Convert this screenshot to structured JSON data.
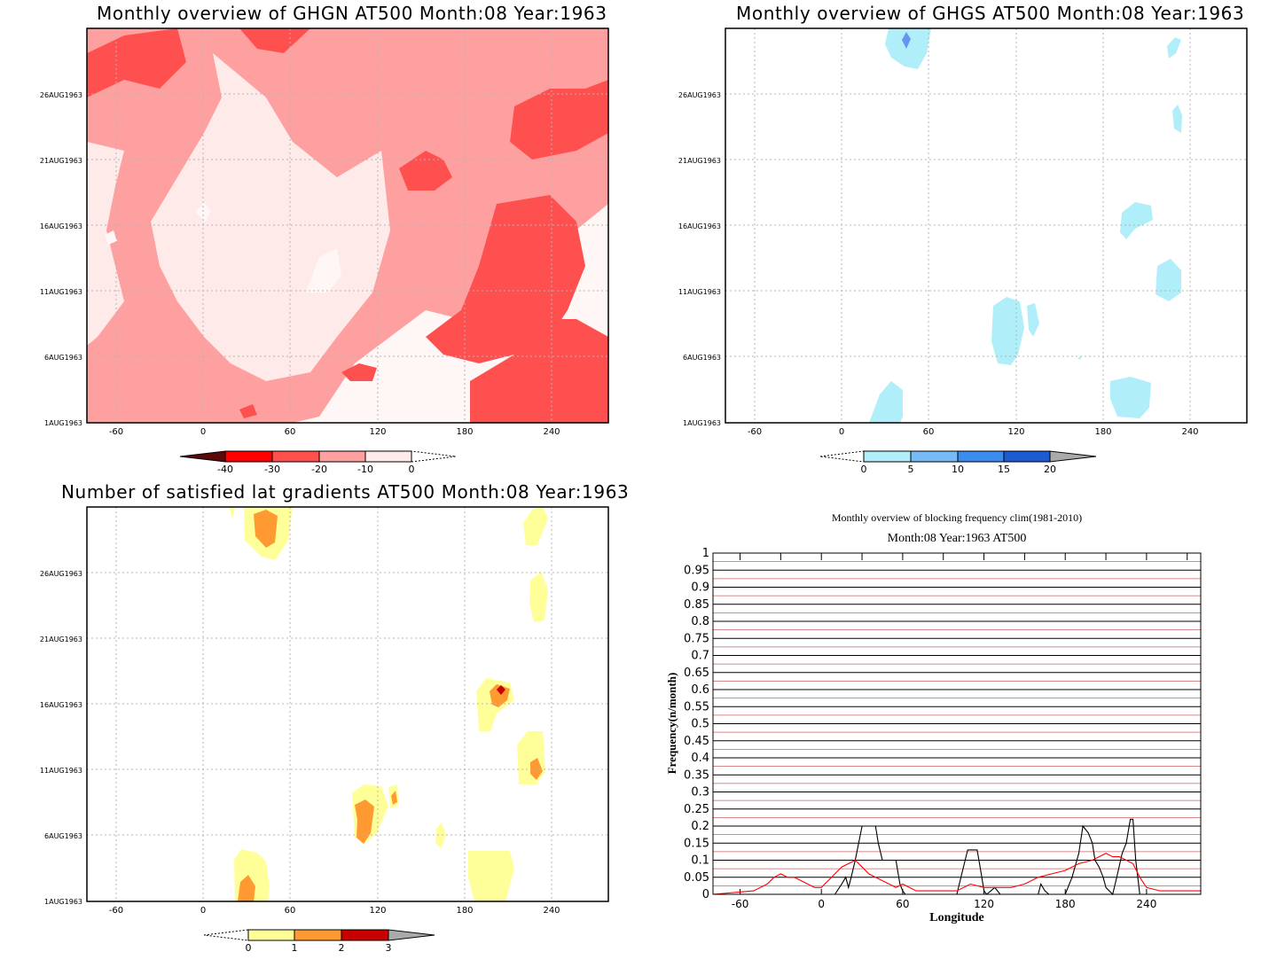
{
  "panels": [
    {
      "id": "ghgn",
      "title": "Monthly overview of GHGN AT500 Month:08 Year:1963",
      "x_ticks": [
        "-60",
        "0",
        "60",
        "120",
        "180",
        "240"
      ],
      "y_ticks": [
        "1AUG1963",
        "6AUG1963",
        "11AUG1963",
        "16AUG1963",
        "21AUG1963",
        "26AUG1963"
      ],
      "colorbar": {
        "labels": [
          "-40",
          "-30",
          "-20",
          "-10",
          "0"
        ],
        "colors": [
          "#5a0a0a",
          "#ff0000",
          "#ff5050",
          "#ffa0a0",
          "#ffeaea"
        ]
      },
      "fill_colors": {
        "c1": "#ffa0a0",
        "c2": "#ff5050",
        "c3": "#ffeaea",
        "c4": "#fff6f6"
      }
    },
    {
      "id": "ghgs",
      "title": "Monthly overview of GHGS AT500 Month:08 Year:1963",
      "x_ticks": [
        "-60",
        "0",
        "60",
        "120",
        "180",
        "240"
      ],
      "y_ticks": [
        "1AUG1963",
        "6AUG1963",
        "11AUG1963",
        "16AUG1963",
        "21AUG1963",
        "26AUG1963"
      ],
      "colorbar": {
        "labels": [
          "0",
          "5",
          "10",
          "15",
          "20"
        ],
        "colors": [
          "#b0eefa",
          "#78baf5",
          "#3c8cf0",
          "#1e5ad2",
          "#aaaaaa"
        ]
      },
      "fill_colors": {
        "c1": "#b0eefa",
        "c2": "#6496f0"
      }
    },
    {
      "id": "lat",
      "title": "Number of satisfied lat gradients AT500 Month:08 Year:1963",
      "x_ticks": [
        "-60",
        "0",
        "60",
        "120",
        "180",
        "240"
      ],
      "y_ticks": [
        "1AUG1963",
        "6AUG1963",
        "11AUG1963",
        "16AUG1963",
        "21AUG1963",
        "26AUG1963"
      ],
      "colorbar": {
        "labels": [
          "0",
          "1",
          "2",
          "3"
        ],
        "colors": [
          "#ffff9a",
          "#ff9a32",
          "#c80000",
          "#aaaaaa"
        ]
      },
      "fill_colors": {
        "c1": "#ffff9a",
        "c2": "#ff9a32",
        "c3": "#c80000"
      }
    }
  ],
  "chart_data": {
    "type": "line",
    "title": "Monthly overview of blocking frequency clim(1981-2010)",
    "subtitle": "Month:08 Year:1963  AT500",
    "xlabel": "Longitude",
    "ylabel": "Frequency(n/month)",
    "x_ticks": [
      "-60",
      "0",
      "60",
      "120",
      "180",
      "240"
    ],
    "y_ticks": [
      "0",
      "0.05",
      "0.1",
      "0.15",
      "0.2",
      "0.25",
      "0.3",
      "0.35",
      "0.4",
      "0.45",
      "0.5",
      "0.55",
      "0.6",
      "0.65",
      "0.7",
      "0.75",
      "0.8",
      "0.85",
      "0.9",
      "0.95",
      "1"
    ],
    "xlim": [
      -80,
      280
    ],
    "ylim": [
      0,
      1
    ],
    "grid": true,
    "series": [
      {
        "color": "#000000",
        "x": [
          -80,
          10,
          15,
          18,
          20,
          22,
          25,
          30,
          32,
          40,
          42,
          45,
          48,
          55,
          58,
          60,
          62,
          100,
          103,
          108,
          115,
          118,
          120,
          122,
          128,
          130,
          132,
          160,
          162,
          165,
          168,
          180,
          185,
          190,
          193,
          197,
          200,
          202,
          205,
          208,
          210,
          215,
          218,
          222,
          225,
          228,
          230,
          232,
          235,
          280
        ],
        "y": [
          0,
          0,
          0.03,
          0.05,
          0.02,
          0.05,
          0.1,
          0.2,
          0.2,
          0.2,
          0.15,
          0.1,
          0.1,
          0.1,
          0.03,
          0.01,
          0,
          0,
          0.05,
          0.13,
          0.13,
          0.06,
          0.01,
          0,
          0.02,
          0.01,
          0,
          0,
          0.03,
          0.01,
          0,
          0,
          0.05,
          0.12,
          0.2,
          0.18,
          0.15,
          0.1,
          0.08,
          0.05,
          0.02,
          0,
          0.05,
          0.12,
          0.15,
          0.22,
          0.22,
          0.1,
          0,
          0
        ]
      },
      {
        "color": "#ff0000",
        "x": [
          -80,
          -50,
          -40,
          -35,
          -30,
          -25,
          -20,
          -15,
          -10,
          -5,
          0,
          5,
          10,
          15,
          20,
          25,
          30,
          35,
          40,
          45,
          50,
          55,
          60,
          65,
          70,
          80,
          90,
          100,
          110,
          120,
          130,
          140,
          150,
          160,
          170,
          180,
          190,
          200,
          205,
          210,
          215,
          220,
          225,
          230,
          235,
          240,
          250,
          260,
          270,
          280
        ],
        "y": [
          0,
          0.01,
          0.03,
          0.05,
          0.06,
          0.05,
          0.05,
          0.04,
          0.03,
          0.02,
          0.02,
          0.04,
          0.06,
          0.08,
          0.09,
          0.1,
          0.08,
          0.06,
          0.05,
          0.04,
          0.03,
          0.02,
          0.03,
          0.02,
          0.01,
          0.01,
          0.01,
          0.01,
          0.03,
          0.02,
          0.02,
          0.02,
          0.03,
          0.05,
          0.06,
          0.07,
          0.09,
          0.1,
          0.11,
          0.12,
          0.11,
          0.11,
          0.1,
          0.09,
          0.05,
          0.02,
          0.01,
          0.01,
          0.01,
          0.01
        ]
      }
    ]
  }
}
